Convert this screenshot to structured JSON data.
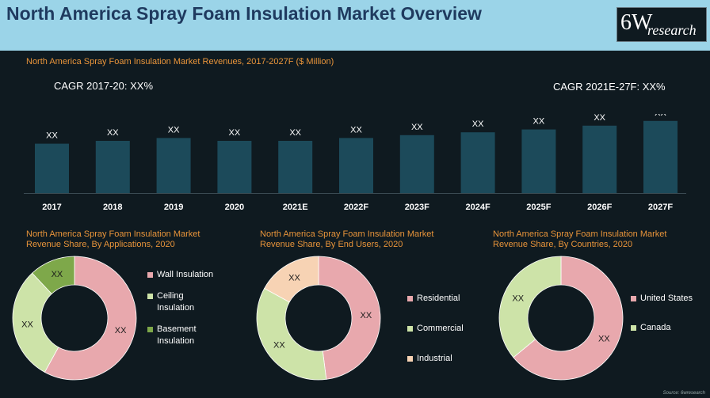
{
  "header": {
    "title": "North America Spray Foam Insulation Market Overview",
    "logo_big": "6W",
    "logo_small": "research"
  },
  "bar_section": {
    "subtitle": "North America Spray Foam Insulation Market Revenues, 2017-2027F ($ Million)",
    "cagr_left": "CAGR 2017-20: XX%",
    "cagr_right": "CAGR 2021E-27F: XX%"
  },
  "pies": [
    {
      "subtitle": "North America Spray Foam Insulation Market Revenue Share, By Applications, 2020"
    },
    {
      "subtitle": "North America Spray Foam Insulation Market Revenue Share, By End Users, 2020"
    },
    {
      "subtitle": "North America Spray Foam Insulation Market Revenue Share, By Countries, 2020"
    }
  ],
  "source": "Source: 6wresearch",
  "colors": {
    "bar": "#1c4a5a",
    "pink": "#e8a8ad",
    "green": "#cde3a8",
    "dark_green": "#7ea84a",
    "peach": "#f7d3b4"
  },
  "chart_data": [
    {
      "type": "bar",
      "title": "North America Spray Foam Insulation Market Revenues, 2017-2027F ($ Million)",
      "categories": [
        "2017",
        "2018",
        "2019",
        "2020",
        "2021E",
        "2022F",
        "2023F",
        "2024F",
        "2025F",
        "2026F",
        "2027F"
      ],
      "values": [
        52,
        55,
        58,
        55,
        55,
        58,
        61,
        64,
        67,
        71,
        76
      ],
      "data_labels": [
        "XX",
        "XX",
        "XX",
        "XX",
        "XX",
        "XX",
        "XX",
        "XX",
        "XX",
        "XX",
        "XX"
      ],
      "ylim": [
        0,
        100
      ]
    },
    {
      "type": "pie",
      "title": "North America Spray Foam Insulation Market Revenue Share, By Applications, 2020",
      "labels": [
        "Wall Insulation",
        "Ceiling Insulation",
        "Basement Insulation"
      ],
      "values": [
        58,
        30,
        12
      ],
      "data_labels": [
        "XX",
        "XX",
        "XX"
      ],
      "legend_lines": [
        [
          "Wall Insulation"
        ],
        [
          "Ceiling",
          "Insulation"
        ],
        [
          "Basement",
          "Insulation"
        ]
      ],
      "colors": [
        "#e8a8ad",
        "#cde3a8",
        "#7ea84a"
      ]
    },
    {
      "type": "pie",
      "title": "North America Spray Foam Insulation Market Revenue Share, By End Users, 2020",
      "labels": [
        "Residential",
        "Commercial",
        "Industrial"
      ],
      "values": [
        48,
        35,
        17
      ],
      "data_labels": [
        "XX",
        "XX",
        "XX"
      ],
      "legend_lines": [
        [
          "Residential"
        ],
        [
          "Commercial"
        ],
        [
          "Industrial"
        ]
      ],
      "colors": [
        "#e8a8ad",
        "#cde3a8",
        "#f7d3b4"
      ]
    },
    {
      "type": "pie",
      "title": "North America Spray Foam Insulation Market Revenue Share, By Countries, 2020",
      "labels": [
        "United States",
        "Canada"
      ],
      "values": [
        64,
        36
      ],
      "data_labels": [
        "XX",
        "XX"
      ],
      "legend_lines": [
        [
          "United States"
        ],
        [
          "Canada"
        ]
      ],
      "colors": [
        "#e8a8ad",
        "#cde3a8"
      ]
    }
  ]
}
